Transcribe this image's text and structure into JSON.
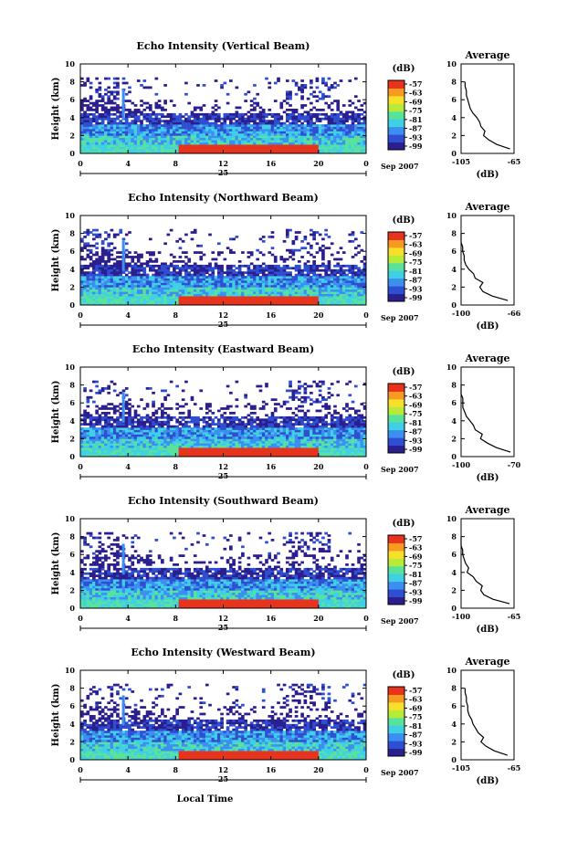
{
  "colorbar_unit": "(dB)",
  "colorbar_ticks": [
    "-57",
    "-63",
    "-69",
    "-75",
    "-81",
    "-87",
    "-93",
    "-99"
  ],
  "colors": {
    "scale": [
      "#2b1f8f",
      "#2e4fd1",
      "#3c8ef0",
      "#3fd0e6",
      "#59e29b",
      "#b8ea3a",
      "#f6e02a",
      "#f69a22",
      "#e8321c"
    ]
  },
  "ylabel": "Height (km)",
  "time_ticks": [
    "0",
    "4",
    "8",
    "12",
    "16",
    "20",
    "0"
  ],
  "height_ticks": [
    "0",
    "2",
    "4",
    "6",
    "8",
    "10"
  ],
  "date_label": "25",
  "month_label": "Sep 2007",
  "avg_title": "Average",
  "avg_xlabel": "(dB)",
  "xlabel": "Local Time",
  "chart_data": [
    {
      "type": "heatmap",
      "title": "Echo Intensity (Vertical Beam)",
      "x": [
        0,
        24
      ],
      "ylim": [
        0,
        10
      ],
      "clim": [
        -99,
        -57
      ],
      "avg_profile": {
        "xlim": [
          -105,
          -65
        ],
        "xticks": [
          "-105",
          "-65"
        ],
        "height": [
          0.5,
          1.0,
          1.5,
          2.0,
          2.5,
          3.0,
          3.5,
          4.0,
          4.5,
          5.0,
          5.5,
          6.0,
          6.5,
          7.0,
          7.5,
          8.0
        ],
        "db": [
          -68,
          -78,
          -84,
          -88,
          -87,
          -90,
          -91,
          -93,
          -96,
          -98,
          -99,
          -100,
          -101,
          -101,
          -102,
          -102
        ]
      }
    },
    {
      "type": "heatmap",
      "title": "Echo Intensity (Northward Beam)",
      "x": [
        0,
        24
      ],
      "ylim": [
        0,
        10
      ],
      "clim": [
        -99,
        -57
      ],
      "avg_profile": {
        "xlim": [
          -100,
          -66
        ],
        "xticks": [
          "-100",
          "-66"
        ],
        "height": [
          0.5,
          1.0,
          1.5,
          2.0,
          2.5,
          3.0,
          3.5,
          4.0,
          4.5,
          5.0,
          5.5,
          6.0,
          6.5,
          7.0,
          7.5,
          8.0
        ],
        "db": [
          -70,
          -80,
          -86,
          -88,
          -86,
          -91,
          -92,
          -95,
          -97,
          -98,
          -98,
          -99,
          -99,
          -100,
          -100,
          -100
        ]
      }
    },
    {
      "type": "heatmap",
      "title": "Echo Intensity (Eastward Beam)",
      "x": [
        0,
        24
      ],
      "ylim": [
        0,
        10
      ],
      "clim": [
        -99,
        -57
      ],
      "avg_profile": {
        "xlim": [
          -100,
          -70
        ],
        "xticks": [
          "-100",
          "-70"
        ],
        "height": [
          0.5,
          1.0,
          1.5,
          2.0,
          2.5,
          3.0,
          3.5,
          4.0,
          4.5,
          5.0,
          5.5,
          6.0,
          6.5,
          7.0,
          7.5,
          8.0
        ],
        "db": [
          -72,
          -80,
          -85,
          -89,
          -88,
          -92,
          -93,
          -95,
          -97,
          -98,
          -99,
          -99,
          -99,
          -100,
          -100,
          -100
        ]
      }
    },
    {
      "type": "heatmap",
      "title": "Echo Intensity (Southward Beam)",
      "x": [
        0,
        24
      ],
      "ylim": [
        0,
        10
      ],
      "clim": [
        -99,
        -57
      ],
      "avg_profile": {
        "xlim": [
          -100,
          -65
        ],
        "xticks": [
          "-100",
          "-65"
        ],
        "height": [
          0.5,
          1.0,
          1.5,
          2.0,
          2.5,
          3.0,
          3.5,
          4.0,
          4.5,
          5.0,
          5.5,
          6.0,
          6.5,
          7.0,
          7.5,
          8.0
        ],
        "db": [
          -68,
          -79,
          -85,
          -87,
          -86,
          -90,
          -92,
          -96,
          -95,
          -97,
          -98,
          -99,
          -99,
          -100,
          -100,
          -100
        ]
      }
    },
    {
      "type": "heatmap",
      "title": "Echo Intensity (Westward Beam)",
      "x": [
        0,
        24
      ],
      "ylim": [
        0,
        10
      ],
      "clim": [
        -99,
        -57
      ],
      "avg_profile": {
        "xlim": [
          -105,
          -65
        ],
        "xticks": [
          "-105",
          "-65"
        ],
        "height": [
          0.5,
          1.0,
          1.5,
          2.0,
          2.5,
          3.0,
          3.5,
          4.0,
          4.5,
          5.0,
          5.5,
          6.0,
          6.5,
          7.0,
          7.5,
          8.0
        ],
        "db": [
          -70,
          -80,
          -86,
          -90,
          -88,
          -92,
          -94,
          -96,
          -97,
          -99,
          -100,
          -100,
          -101,
          -101,
          -102,
          -102
        ]
      }
    }
  ]
}
